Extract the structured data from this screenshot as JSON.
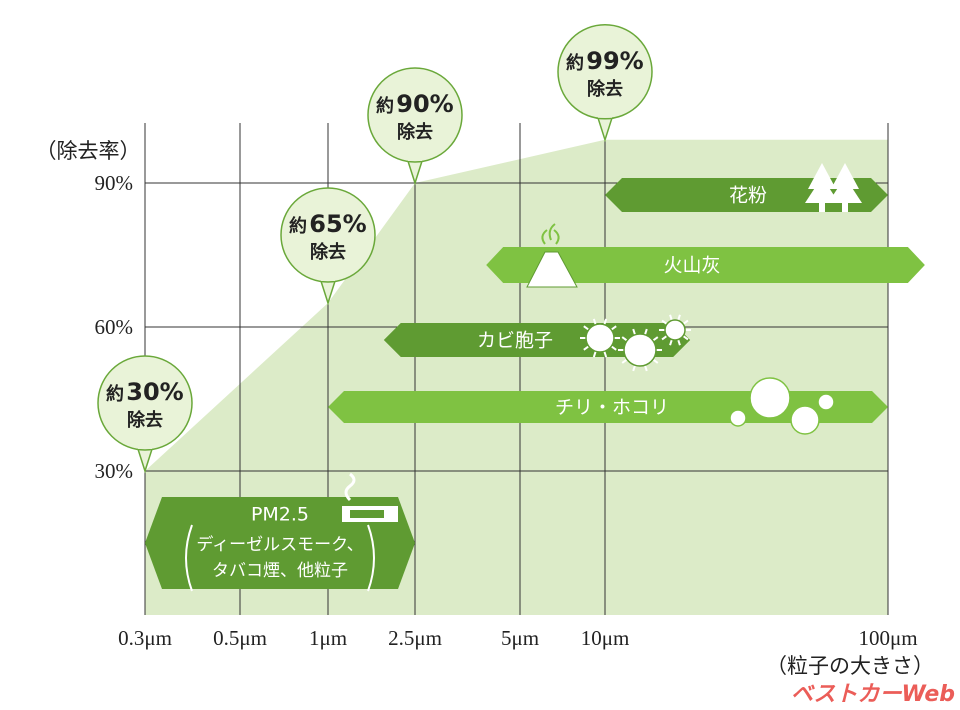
{
  "chart_data": {
    "type": "area",
    "y_axis_label": "（除去率）",
    "x_axis_label": "（粒子の大きさ）",
    "xlim": [
      0.3,
      100
    ],
    "xticks": [
      {
        "value": 0.3,
        "label": "0.3μm"
      },
      {
        "value": 0.5,
        "label": "0.5μm"
      },
      {
        "value": 1,
        "label": "1μm"
      },
      {
        "value": 2.5,
        "label": "2.5μm"
      },
      {
        "value": 5,
        "label": "5μm"
      },
      {
        "value": 10,
        "label": "10μm"
      },
      {
        "value": 100,
        "label": "100μm"
      }
    ],
    "ylim": [
      0,
      100
    ],
    "yticks": [
      {
        "value": 30,
        "label": "30%"
      },
      {
        "value": 60,
        "label": "60%"
      },
      {
        "value": 90,
        "label": "90%"
      }
    ],
    "grid": true,
    "series": [
      {
        "color": "#dcebc8",
        "x": [
          0.3,
          1,
          2.5,
          10,
          100
        ],
        "values": [
          30,
          65,
          90,
          99,
          99
        ],
        "value_labels": [
          "30%",
          "65%",
          "90%",
          "99%",
          null
        ]
      }
    ],
    "callout_prefix": "約",
    "callout_suffix": "除去",
    "ranges": [
      {
        "name": "花粉",
        "range": [
          10,
          100
        ],
        "color": "#5f9b32"
      },
      {
        "name": "火山灰",
        "range": [
          4,
          135
        ],
        "color": "#7fc242"
      },
      {
        "name": "カビ胞子",
        "range": [
          1.8,
          20
        ],
        "color": "#5f9b32"
      },
      {
        "name": "チリ・ホコリ",
        "range": [
          1,
          100
        ],
        "color": "#7fc242"
      },
      {
        "name": "PM2.5",
        "range": [
          0.3,
          2.5
        ],
        "color": "#5f9b32",
        "note_lines": [
          "ディーゼルスモーク、",
          "タバコ煙、他粒子"
        ]
      }
    ],
    "watermark": "ベストカーWeb"
  }
}
